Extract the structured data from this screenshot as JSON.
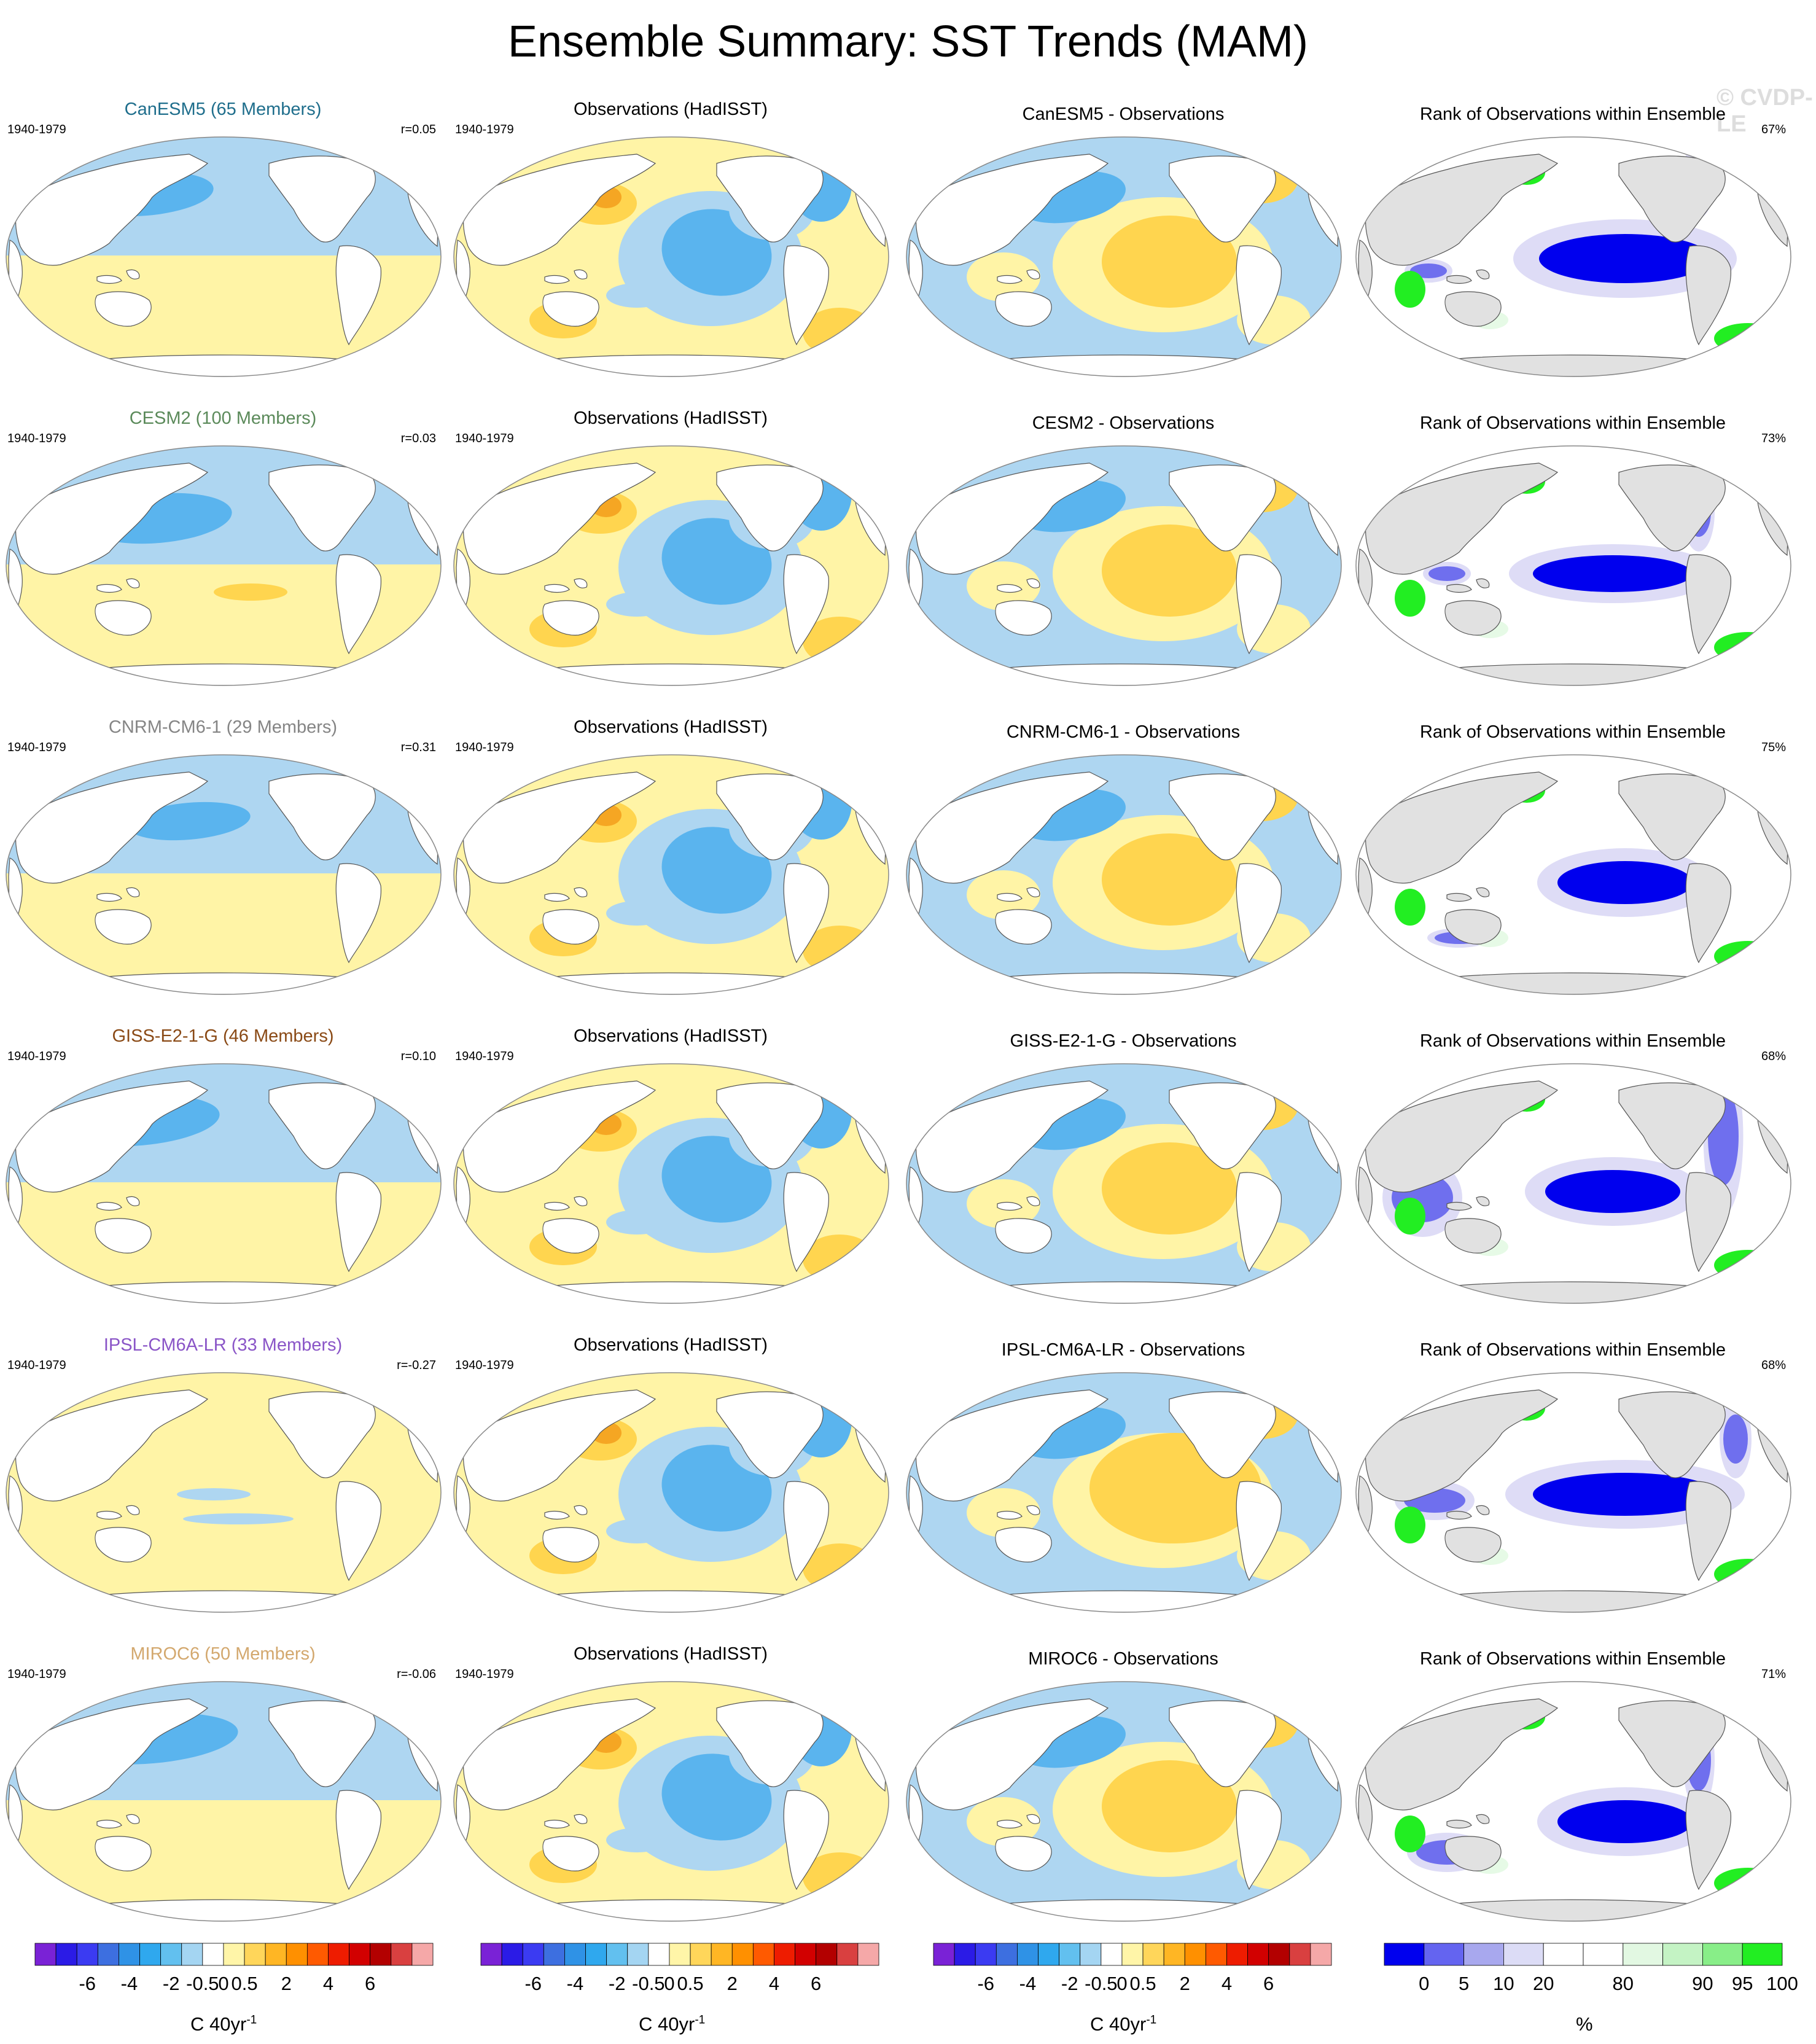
{
  "title": "Ensemble Summary: SST Trends (MAM)",
  "watermark": "© CVDP-LE",
  "period": "1940-1979",
  "obs_title": "Observations (HadISST)",
  "rank_title": "Rank of Observations within Ensemble",
  "rows": [
    {
      "model": "CanESM5 (65 Members)",
      "model_color": "#1f6e8c",
      "r": "r=0.05",
      "diff_title": "CanESM5 - Observations",
      "rank_pct": "67%"
    },
    {
      "model": "CESM2 (100 Members)",
      "model_color": "#5b8a5a",
      "r": "r=0.03",
      "diff_title": "CESM2 - Observations",
      "rank_pct": "73%"
    },
    {
      "model": "CNRM-CM6-1 (29 Members)",
      "model_color": "#858585",
      "r": "r=0.31",
      "diff_title": "CNRM-CM6-1 - Observations",
      "rank_pct": "75%"
    },
    {
      "model": "GISS-E2-1-G (46 Members)",
      "model_color": "#8a4a16",
      "r": "r=0.10",
      "diff_title": "GISS-E2-1-G - Observations",
      "rank_pct": "68%"
    },
    {
      "model": "IPSL-CM6A-LR (33 Members)",
      "model_color": "#8a55c7",
      "r": "r=-0.27",
      "diff_title": "IPSL-CM6A-LR - Observations",
      "rank_pct": "68%"
    },
    {
      "model": "MIROC6 (50 Members)",
      "model_color": "#d3a86e",
      "r": "r=-0.06",
      "diff_title": "MIROC6 - Observations",
      "rank_pct": "71%"
    }
  ],
  "colors": {
    "ocean_neutral": "#ffffff",
    "land_model": "#ffffff",
    "land_rank": "#e1e1e1",
    "light_blue": "#aed6f1",
    "mid_blue": "#5ab4ee",
    "deep_blue": "#2d9be5",
    "light_yellow": "#fff4a6",
    "mid_yellow": "#ffd54f",
    "orange": "#f5a623",
    "rank_low": "#0000ee",
    "rank_mid": "#6f6fee",
    "rank_lite": "#dedcf6",
    "rank_green_lite": "#e6fae6",
    "rank_green": "#22ee22"
  },
  "chart_data": {
    "type": "heatmap",
    "sst_colorbar": {
      "tick_labels": [
        "-6",
        "-4",
        "-2",
        "-0.5",
        "0",
        "0.5",
        "2",
        "4",
        "6"
      ],
      "unit": "C 40yr",
      "unit_sup": "-1",
      "colors": [
        "#7a22d6",
        "#2b1be6",
        "#3b3bf2",
        "#3d6fe0",
        "#2f92e6",
        "#2fa8ee",
        "#62c0ef",
        "#a4d5f2",
        "#ffffff",
        "#fff5a8",
        "#ffd65a",
        "#ffb624",
        "#ff9000",
        "#ff5a00",
        "#ee1c00",
        "#d20000",
        "#b30000",
        "#d94040",
        "#f5a8a8"
      ]
    },
    "rank_colorbar": {
      "tick_labels": [
        "0",
        "5",
        "10",
        "20",
        "80",
        "90",
        "95",
        "100"
      ],
      "unit": "%",
      "colors": [
        "#0000ee",
        "#6464f0",
        "#a8a8ee",
        "#dcdcf6",
        "#ffffff",
        "#ffffff",
        "#e2f8e2",
        "#c4f3c4",
        "#88ee88",
        "#22ee22"
      ]
    }
  }
}
